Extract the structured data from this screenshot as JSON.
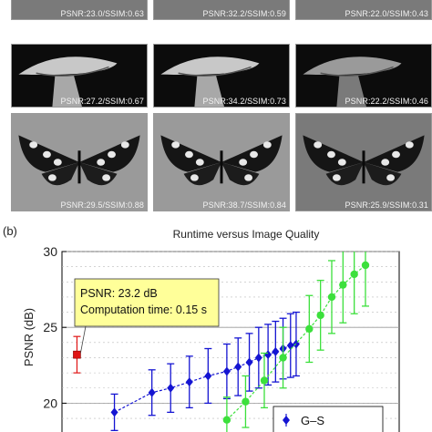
{
  "panel_labels": {
    "b": "(b)"
  },
  "thumbnails": [
    {
      "row": 0,
      "col": 0,
      "scene": "top",
      "caption": "PSNR:23.0/SSIM:0.63"
    },
    {
      "row": 0,
      "col": 1,
      "scene": "top",
      "caption": "PSNR:32.2/SSIM:0.59"
    },
    {
      "row": 0,
      "col": 2,
      "scene": "top",
      "caption": "PSNR:22.0/SSIM:0.43"
    },
    {
      "row": 1,
      "col": 0,
      "scene": "mushroom",
      "caption": "PSNR:27.2/SSIM:0.67"
    },
    {
      "row": 1,
      "col": 1,
      "scene": "mushroom",
      "caption": "PSNR:34.2/SSIM:0.73"
    },
    {
      "row": 1,
      "col": 2,
      "scene": "mushroom",
      "caption": "PSNR:22.2/SSIM:0.46"
    },
    {
      "row": 2,
      "col": 0,
      "scene": "butterfly",
      "caption": "PSNR:29.5/SSIM:0.88"
    },
    {
      "row": 2,
      "col": 1,
      "scene": "butterfly",
      "caption": "PSNR:38.7/SSIM:0.84"
    },
    {
      "row": 2,
      "col": 2,
      "scene": "butterfly",
      "caption": "PSNR:25.9/SSIM:0.31"
    }
  ],
  "chart_data": {
    "type": "scatter",
    "title": "Runtime versus Image Quality",
    "xlabel": "",
    "ylabel": "PSNR (dB)",
    "ylim": [
      17.5,
      30
    ],
    "yticks": [
      20,
      25,
      30
    ],
    "grid": true,
    "legend_placement": "bottom-right",
    "colors": {
      "blue": "#1414d2",
      "green": "#3ce03c",
      "red": "#e01414",
      "annotation_bg": "#ffff99"
    },
    "annotation": {
      "lines": [
        "PSNR: 23.2 dB",
        "Computation time: 0.15 s"
      ],
      "point": {
        "x": 0,
        "y": 23.2,
        "err": 1.2
      }
    },
    "series": [
      {
        "name": "G–S",
        "color": "blue",
        "marker": "diamond",
        "points": [
          {
            "x": 1,
            "y": 19.4,
            "err": 1.2
          },
          {
            "x": 2,
            "y": 20.7,
            "err": 1.5
          },
          {
            "x": 2.5,
            "y": 21.0,
            "err": 1.6
          },
          {
            "x": 3,
            "y": 21.4,
            "err": 1.7
          },
          {
            "x": 3.5,
            "y": 21.8,
            "err": 1.8
          },
          {
            "x": 4,
            "y": 22.1,
            "err": 1.8
          },
          {
            "x": 4.3,
            "y": 22.4,
            "err": 1.9
          },
          {
            "x": 4.6,
            "y": 22.7,
            "err": 1.9
          },
          {
            "x": 4.85,
            "y": 23.0,
            "err": 2.0
          },
          {
            "x": 5.1,
            "y": 23.2,
            "err": 2.0
          },
          {
            "x": 5.3,
            "y": 23.4,
            "err": 2.0
          },
          {
            "x": 5.5,
            "y": 23.6,
            "err": 2.0
          },
          {
            "x": 5.7,
            "y": 23.8,
            "err": 2.1
          },
          {
            "x": 5.85,
            "y": 23.9,
            "err": 2.1
          }
        ]
      },
      {
        "name": "",
        "color": "green",
        "marker": "circle",
        "points": [
          {
            "x": 4.0,
            "y": 18.9,
            "err": 1.5
          },
          {
            "x": 4.5,
            "y": 20.1,
            "err": 1.7
          },
          {
            "x": 5.0,
            "y": 21.5,
            "err": 1.8
          },
          {
            "x": 5.5,
            "y": 23.0,
            "err": 2.0
          },
          {
            "x": 6.2,
            "y": 24.9,
            "err": 2.2
          },
          {
            "x": 6.5,
            "y": 25.8,
            "err": 2.3
          },
          {
            "x": 6.8,
            "y": 27.0,
            "err": 2.4
          },
          {
            "x": 7.1,
            "y": 27.8,
            "err": 2.5
          },
          {
            "x": 7.4,
            "y": 28.5,
            "err": 2.6
          },
          {
            "x": 7.7,
            "y": 29.1,
            "err": 2.7
          }
        ]
      }
    ]
  }
}
